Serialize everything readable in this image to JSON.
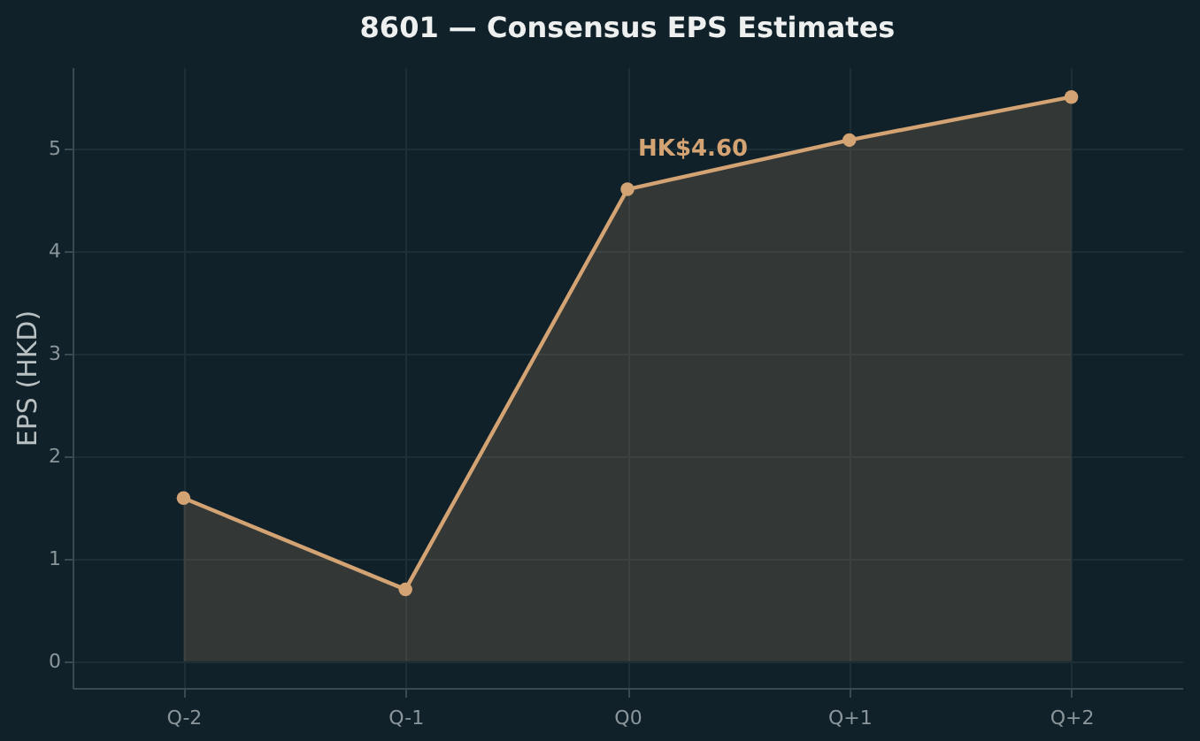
{
  "chart_data": {
    "type": "area",
    "title": "8601 — Consensus EPS Estimates",
    "ylabel": "EPS (HKD)",
    "categories": [
      "Q-2",
      "Q-1",
      "Q0",
      "Q+1",
      "Q+2"
    ],
    "series": [
      {
        "color": "#d4a373",
        "values": [
          1.59,
          0.7,
          4.6,
          5.08,
          5.5
        ]
      }
    ],
    "ylim": [
      -0.26,
      5.79
    ],
    "yticks": [
      0,
      1,
      2,
      3,
      4,
      5
    ],
    "grid": true,
    "marker": "circle",
    "line_style": "solid",
    "annotations": [
      {
        "text": "HK$4.60",
        "x": "Q0",
        "y": 4.6
      }
    ]
  }
}
